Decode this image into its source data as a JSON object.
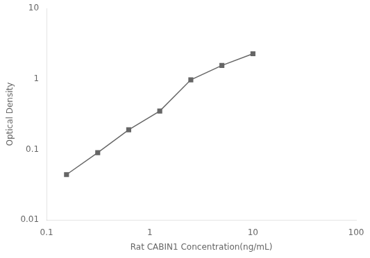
{
  "chart_data": {
    "type": "line",
    "x": [
      0.156,
      0.313,
      0.625,
      1.25,
      2.5,
      5.0,
      10.0
    ],
    "values": [
      0.044,
      0.09,
      0.19,
      0.35,
      0.97,
      1.55,
      2.27
    ],
    "xlabel": "Rat CABIN1 Concentration(ng/mL)",
    "ylabel": "Optical Density",
    "xlim": [
      0.1,
      100
    ],
    "ylim": [
      0.01,
      10
    ],
    "xticks": [
      0.1,
      1,
      10,
      100
    ],
    "yticks": [
      0.01,
      0.1,
      1,
      10
    ],
    "log": true,
    "grid": false,
    "color": "#666666",
    "marker": "square"
  }
}
